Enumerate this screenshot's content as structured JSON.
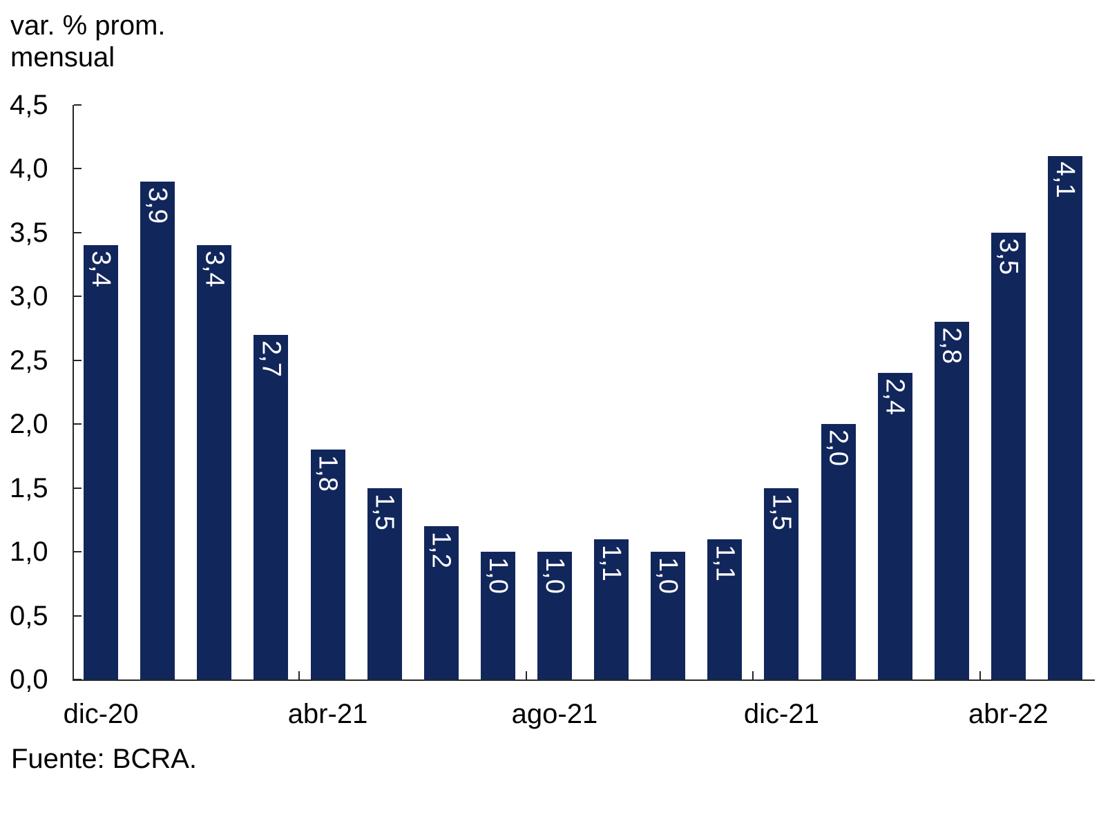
{
  "chart_data": {
    "type": "bar",
    "ylabel_line1": "var. % prom.",
    "ylabel_line2": "mensual",
    "ylim": [
      0,
      4.5
    ],
    "grid": false,
    "legend": null,
    "bar_color": "#11265B",
    "bar_label_color": "#FFFFFF",
    "axis_color": "#262626",
    "text_color": "#000000",
    "bars": [
      {
        "label": "3,4",
        "value": 3.4
      },
      {
        "label": "3,9",
        "value": 3.9
      },
      {
        "label": "3,4",
        "value": 3.4
      },
      {
        "label": "2,7",
        "value": 2.7
      },
      {
        "label": "1,8",
        "value": 1.8
      },
      {
        "label": "1,5",
        "value": 1.5
      },
      {
        "label": "1,2",
        "value": 1.2
      },
      {
        "label": "1,0",
        "value": 1.0
      },
      {
        "label": "1,0",
        "value": 1.0
      },
      {
        "label": "1,1",
        "value": 1.1
      },
      {
        "label": "1,0",
        "value": 1.0
      },
      {
        "label": "1,1",
        "value": 1.1
      },
      {
        "label": "1,5",
        "value": 1.5
      },
      {
        "label": "2,0",
        "value": 2.0
      },
      {
        "label": "2,4",
        "value": 2.4
      },
      {
        "label": "2,8",
        "value": 2.8
      },
      {
        "label": "3,5",
        "value": 3.5
      },
      {
        "label": "4,1",
        "value": 4.1
      }
    ],
    "y_axis": {
      "ticks": [
        {
          "value": 0.0,
          "label": "0,0"
        },
        {
          "value": 0.5,
          "label": "0,5"
        },
        {
          "value": 1.0,
          "label": "1,0"
        },
        {
          "value": 1.5,
          "label": "1,5"
        },
        {
          "value": 2.0,
          "label": "2,0"
        },
        {
          "value": 2.5,
          "label": "2,5"
        },
        {
          "value": 3.0,
          "label": "3,0"
        },
        {
          "value": 3.5,
          "label": "3,5"
        },
        {
          "value": 4.0,
          "label": "4,0"
        },
        {
          "value": 4.5,
          "label": "4,5"
        }
      ]
    },
    "x_axis": {
      "labels": [
        {
          "bar_index": 0,
          "text": "dic-20"
        },
        {
          "bar_index": 4,
          "text": "abr-21"
        },
        {
          "bar_index": 8,
          "text": "ago-21"
        },
        {
          "bar_index": 12,
          "text": "dic-21"
        },
        {
          "bar_index": 16,
          "text": "abr-22"
        }
      ],
      "tick_after_bar": [
        4,
        8,
        12,
        16
      ]
    }
  },
  "source": {
    "text": "Fuente: BCRA."
  }
}
